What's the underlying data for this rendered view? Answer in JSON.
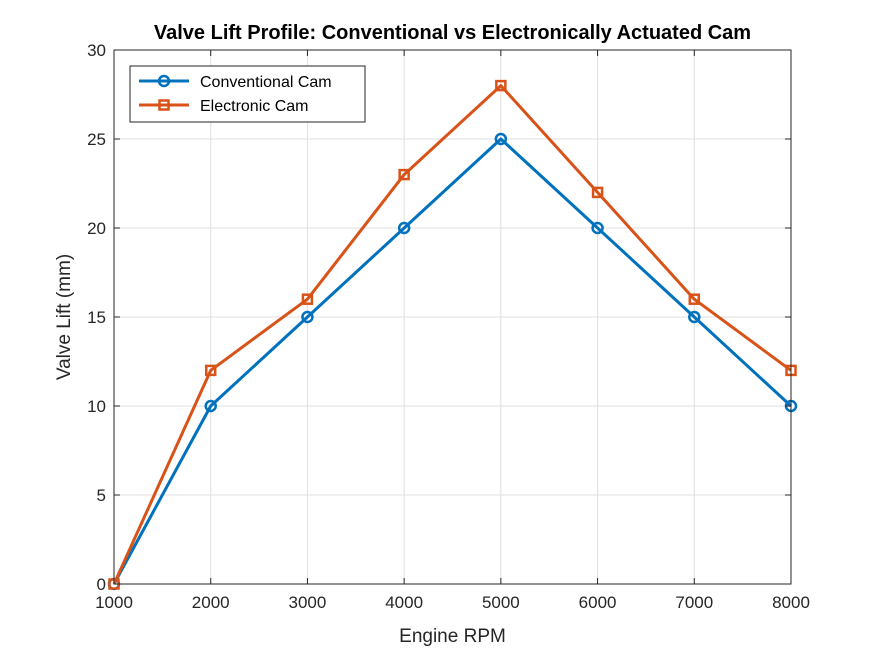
{
  "chart_data": {
    "type": "line",
    "title": "Valve Lift Profile: Conventional vs Electronically Actuated Cam",
    "xlabel": "Engine RPM",
    "ylabel": "Valve Lift (mm)",
    "x": [
      1000,
      2000,
      3000,
      4000,
      5000,
      6000,
      7000,
      8000
    ],
    "xlim": [
      1000,
      8000
    ],
    "ylim": [
      0,
      30
    ],
    "xticks": [
      1000,
      2000,
      3000,
      4000,
      5000,
      6000,
      7000,
      8000
    ],
    "yticks": [
      0,
      5,
      10,
      15,
      20,
      25,
      30
    ],
    "grid": true,
    "legend_position": "top-left",
    "series": [
      {
        "name": "Conventional Cam",
        "marker": "circle",
        "color": "#0072BD",
        "values": [
          0,
          10,
          15,
          20,
          25,
          20,
          15,
          10
        ]
      },
      {
        "name": "Electronic Cam",
        "marker": "square",
        "color": "#D95319",
        "values": [
          0,
          12,
          16,
          23,
          28,
          22,
          16,
          12
        ]
      }
    ]
  }
}
